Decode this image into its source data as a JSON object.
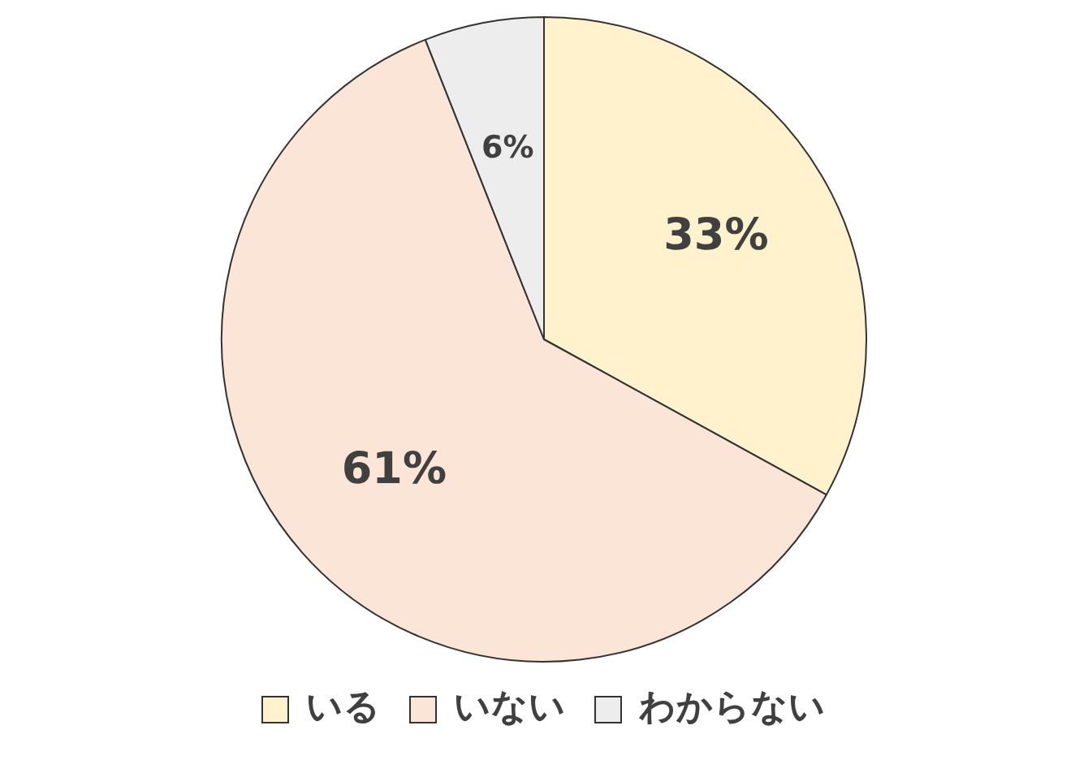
{
  "chart_data": {
    "type": "pie",
    "categories": [
      "いる",
      "いない",
      "わからない"
    ],
    "values": [
      33,
      61,
      6
    ],
    "colors": [
      "#fff2cc",
      "#fbe5d6",
      "#ededed"
    ],
    "value_labels": [
      "33%",
      "61%",
      "6%"
    ],
    "legend": "bottom"
  }
}
